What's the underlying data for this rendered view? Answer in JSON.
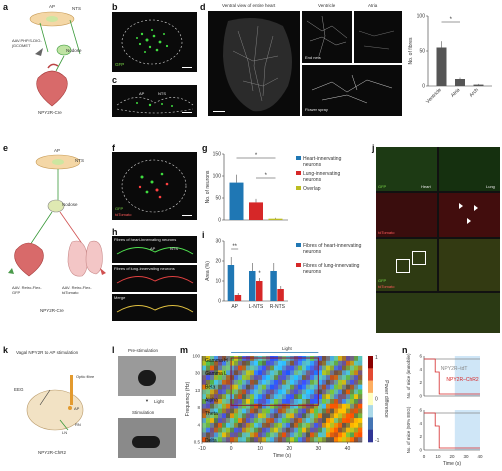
{
  "panels": {
    "a": {
      "label": "a",
      "ap": "AP",
      "nts": "NTS",
      "vector": "AAV.PHP.S-DIO-jGCOMET",
      "nodose": "Nodose",
      "mouse": "NPY2R-Cre"
    },
    "b": {
      "label": "b",
      "stain": "GFP"
    },
    "c": {
      "label": "c",
      "ap": "AP",
      "nts": "NTS"
    },
    "d": {
      "label": "d",
      "view_title": "Ventral view of entire heart",
      "ventricle_title": "Ventricle",
      "atria_title": "Atria",
      "end_nets": "End nets",
      "flower_spray": "Flower spray"
    },
    "e": {
      "label": "e",
      "ap": "AP",
      "nts": "NTS",
      "nodose": "Nodose",
      "left_vector": "AAV. Retro-Flex-GFP",
      "right_vector": "AAV. Retro-Flex-tdTomato",
      "mouse": "NPY2R-Cre"
    },
    "f": {
      "label": "f",
      "stain1": "GFP",
      "stain2": "tdTomato"
    },
    "g": {
      "label": "g"
    },
    "h": {
      "label": "h",
      "row1": "Fibres of heart-innervating neurons",
      "row2": "Fibres of lung-innervating neurons",
      "row3": "Merge",
      "ap": "AP",
      "nts": "NTS"
    },
    "i": {
      "label": "i"
    },
    "j": {
      "label": "j",
      "heart": "Heart",
      "lung": "Lung",
      "stain1": "GFP",
      "stain2": "tdTomato",
      "stain3": "GFP",
      "stain4": "tdTomato"
    },
    "k": {
      "label": "k",
      "title": "Vagal NPY2R to AP stimulation",
      "eeg": "EEG",
      "optic": "Optic fibre",
      "ap": "AP",
      "ln": "LN",
      "rn": "RN",
      "mouse": "NPY2R-ChR2"
    },
    "l": {
      "label": "l",
      "pre": "Pre-stimulation",
      "light": "Light",
      "stim": "Stimulation"
    },
    "m": {
      "label": "m",
      "light": "Light",
      "bands": [
        "Gamma H",
        "Gamma L",
        "Beta",
        "Alpha",
        "Theta",
        "Delta"
      ],
      "ylabel": "Frequency (Hz)",
      "xlabel": "Time (s)",
      "cbar_label": "Power difference",
      "cbar_ticks": [
        "1",
        "0",
        "-1"
      ]
    },
    "n": {
      "label": "n",
      "s1": "NPY2R–tdT",
      "s2": "NPY2R–ChR2",
      "y1": "No. of mice (immobile)",
      "y2": "No. of mice (50% EEG)",
      "xlabel": "Time (s)"
    }
  },
  "chart_data": [
    {
      "id": "d-bar",
      "type": "bar",
      "categories": [
        "Ventricle",
        "Atria",
        "Arch"
      ],
      "values": [
        55,
        10,
        2
      ],
      "errors": [
        9,
        2,
        1
      ],
      "ylabel": "No. of fibres",
      "ylim": [
        0,
        100
      ],
      "yticks": [
        0,
        50,
        100
      ],
      "significance": "*"
    },
    {
      "id": "g-bar",
      "type": "bar",
      "categories": [
        "Heart-innervating neurons",
        "Lung-innervating neurons",
        "Overlap"
      ],
      "colors": [
        "#1f77b4",
        "#d62728",
        "#bcbd22"
      ],
      "values": [
        85,
        40,
        3
      ],
      "errors": [
        18,
        8,
        2
      ],
      "ylabel": "No. of neurons",
      "ylim": [
        0,
        150
      ],
      "yticks": [
        0,
        50,
        100,
        150
      ],
      "legend": [
        "Heart-innervating neurons",
        "Lung-innervating neurons",
        "Overlap"
      ],
      "significance": [
        "*",
        "*"
      ]
    },
    {
      "id": "i-bar",
      "type": "bar",
      "categories": [
        "AP",
        "L-NTS",
        "R-NTS"
      ],
      "series": [
        {
          "name": "Fibres of heart-innervating neurons",
          "color": "#1f77b4",
          "values": [
            18,
            15,
            15
          ],
          "errors": [
            4,
            4,
            4
          ]
        },
        {
          "name": "Fibres of lung-innervating neurons",
          "color": "#d62728",
          "values": [
            3,
            10,
            6
          ],
          "errors": [
            1,
            1.5,
            1.5
          ]
        }
      ],
      "ylabel": "Area (%)",
      "ylim": [
        0,
        30
      ],
      "yticks": [
        0,
        10,
        20,
        30
      ],
      "significance": [
        "**",
        "*"
      ]
    },
    {
      "id": "m-heatmap",
      "type": "heatmap",
      "xticks": [
        "-10",
        "0",
        "10",
        "20",
        "30",
        "40"
      ],
      "yticks": [
        "0.5",
        "4",
        "8",
        "13",
        "30",
        "100"
      ],
      "xlabel": "Time (s)",
      "ylabel": "Frequency (Hz)",
      "light_window": [
        0,
        30
      ]
    },
    {
      "id": "n-step",
      "type": "line",
      "series": [
        {
          "name": "NPY2R–tdT",
          "color": "#888888"
        },
        {
          "name": "NPY2R–ChR2",
          "color": "#d62728"
        }
      ],
      "yticks_top": [
        "0",
        "2",
        "4",
        "6"
      ],
      "yticks_bottom": [
        "0",
        "2",
        "4",
        "6"
      ],
      "xticks": [
        "0",
        "10",
        "20",
        "30",
        "40"
      ],
      "xlabel": "Time (s)"
    }
  ]
}
